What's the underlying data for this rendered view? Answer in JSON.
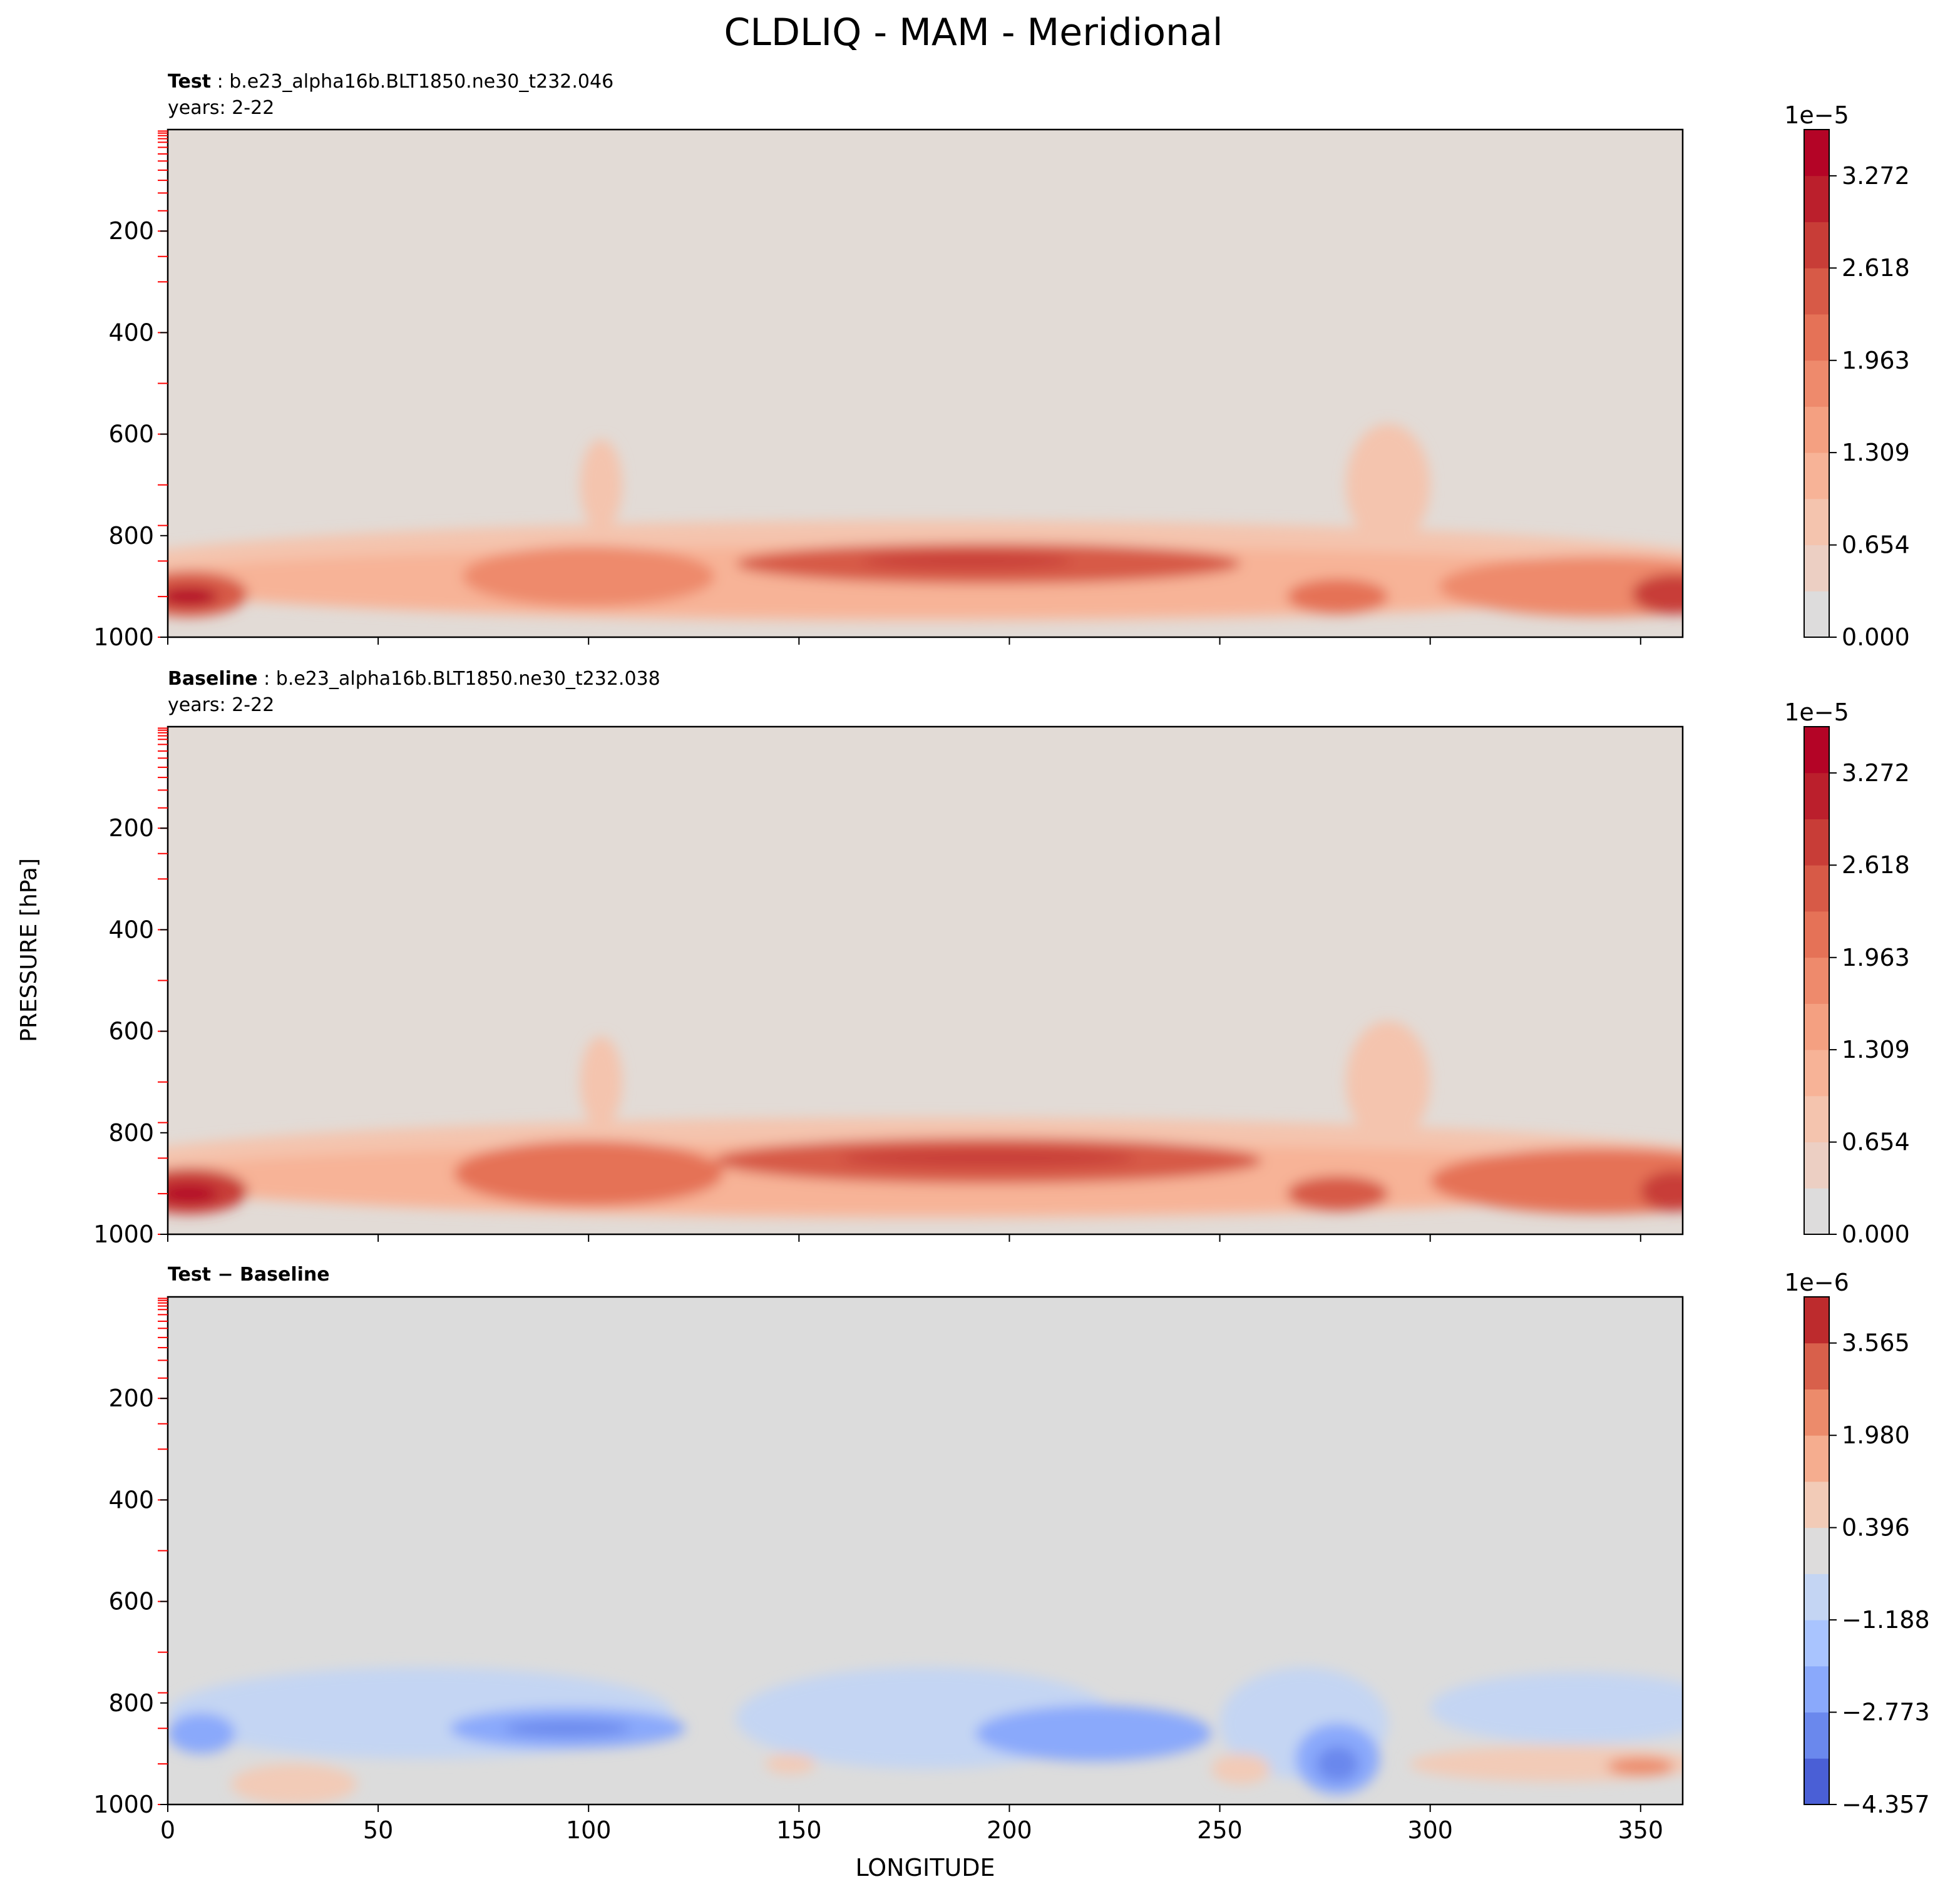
{
  "figure": {
    "title": "CLDLIQ - MAM - Meridional",
    "ylabel": "PRESSURE [hPa]",
    "xlabel": "LONGITUDE"
  },
  "chart_data": [
    {
      "type": "heatmap",
      "panel": "test",
      "title_bold": "Test",
      "title_rest": ": b.e23_alpha16b.BLT1850.ne30_t232.046",
      "subtitle": "years: 2-22",
      "xlim": [
        0,
        360
      ],
      "ylim": [
        1000,
        0
      ],
      "yticks": [
        200,
        400,
        600,
        800,
        1000
      ],
      "xticks": [
        0,
        50,
        100,
        150,
        200,
        250,
        300,
        350
      ],
      "show_xtick_labels": false,
      "colorbar": {
        "multiplier": "1e−5",
        "levels_count": 11,
        "vmin": 0,
        "vmax": 3.6,
        "tick_values": [
          0,
          0.654,
          1.309,
          1.963,
          2.618,
          3.272
        ],
        "tick_labels": [
          "0.000",
          "0.654",
          "1.309",
          "1.963",
          "2.618",
          "3.272"
        ],
        "colors": [
          "#dddcdc",
          "#eccfc3",
          "#f4c4ae",
          "#f7b397",
          "#f4a081",
          "#ee8a6c",
          "#e57257",
          "#d75a47",
          "#c83d37",
          "#bb1f2c",
          "#b40426"
        ]
      },
      "background_color": "#e2dbd6",
      "blobs": [
        {
          "lon": 180,
          "p": 870,
          "dlon": 200,
          "dp": 100,
          "level": 0.8
        },
        {
          "lon": 180,
          "p": 890,
          "dlon": 190,
          "dp": 70,
          "level": 1.3
        },
        {
          "lon": 195,
          "p": 855,
          "dlon": 60,
          "dp": 40,
          "level": 2.3
        },
        {
          "lon": 190,
          "p": 850,
          "dlon": 25,
          "dp": 15,
          "level": 2.8
        },
        {
          "lon": 100,
          "p": 880,
          "dlon": 30,
          "dp": 60,
          "level": 1.9
        },
        {
          "lon": 5,
          "p": 915,
          "dlon": 14,
          "dp": 45,
          "level": 2.6
        },
        {
          "lon": 5,
          "p": 920,
          "dlon": 7,
          "dp": 18,
          "level": 3.3
        },
        {
          "lon": 340,
          "p": 900,
          "dlon": 38,
          "dp": 60,
          "level": 1.9
        },
        {
          "lon": 358,
          "p": 915,
          "dlon": 10,
          "dp": 40,
          "level": 2.8
        },
        {
          "lon": 278,
          "p": 920,
          "dlon": 12,
          "dp": 35,
          "level": 2.2
        },
        {
          "lon": 290,
          "p": 700,
          "dlon": 10,
          "dp": 120,
          "level": 0.7
        },
        {
          "lon": 103,
          "p": 700,
          "dlon": 5,
          "dp": 90,
          "level": 0.7
        }
      ]
    },
    {
      "type": "heatmap",
      "panel": "baseline",
      "title_bold": "Baseline",
      "title_rest": ": b.e23_alpha16b.BLT1850.ne30_t232.038",
      "subtitle": "years: 2-22",
      "xlim": [
        0,
        360
      ],
      "ylim": [
        1000,
        0
      ],
      "yticks": [
        200,
        400,
        600,
        800,
        1000
      ],
      "xticks": [
        0,
        50,
        100,
        150,
        200,
        250,
        300,
        350
      ],
      "show_xtick_labels": false,
      "colorbar": {
        "multiplier": "1e−5",
        "levels_count": 11,
        "vmin": 0,
        "vmax": 3.6,
        "tick_values": [
          0,
          0.654,
          1.309,
          1.963,
          2.618,
          3.272
        ],
        "tick_labels": [
          "0.000",
          "0.654",
          "1.309",
          "1.963",
          "2.618",
          "3.272"
        ],
        "colors": [
          "#dddcdc",
          "#eccfc3",
          "#f4c4ae",
          "#f7b397",
          "#f4a081",
          "#ee8a6c",
          "#e57257",
          "#d75a47",
          "#c83d37",
          "#bb1f2c",
          "#b40426"
        ]
      },
      "background_color": "#e2dbd6",
      "blobs": [
        {
          "lon": 180,
          "p": 870,
          "dlon": 200,
          "dp": 100,
          "level": 0.8
        },
        {
          "lon": 180,
          "p": 890,
          "dlon": 190,
          "dp": 70,
          "level": 1.3
        },
        {
          "lon": 195,
          "p": 855,
          "dlon": 65,
          "dp": 45,
          "level": 2.4
        },
        {
          "lon": 195,
          "p": 850,
          "dlon": 35,
          "dp": 18,
          "level": 2.9
        },
        {
          "lon": 100,
          "p": 880,
          "dlon": 32,
          "dp": 65,
          "level": 2.1
        },
        {
          "lon": 5,
          "p": 915,
          "dlon": 14,
          "dp": 45,
          "level": 2.7
        },
        {
          "lon": 5,
          "p": 920,
          "dlon": 7,
          "dp": 18,
          "level": 3.4
        },
        {
          "lon": 340,
          "p": 895,
          "dlon": 40,
          "dp": 65,
          "level": 2.0
        },
        {
          "lon": 358,
          "p": 915,
          "dlon": 8,
          "dp": 40,
          "level": 2.9
        },
        {
          "lon": 278,
          "p": 920,
          "dlon": 12,
          "dp": 35,
          "level": 2.3
        },
        {
          "lon": 290,
          "p": 700,
          "dlon": 10,
          "dp": 120,
          "level": 0.7
        },
        {
          "lon": 103,
          "p": 700,
          "dlon": 5,
          "dp": 90,
          "level": 0.7
        }
      ]
    },
    {
      "type": "heatmap",
      "panel": "difference",
      "title_bold": "Test − Baseline",
      "title_rest": "",
      "subtitle": "",
      "xlim": [
        0,
        360
      ],
      "ylim": [
        1000,
        0
      ],
      "yticks": [
        200,
        400,
        600,
        800,
        1000
      ],
      "xticks": [
        0,
        50,
        100,
        150,
        200,
        250,
        300,
        350
      ],
      "xtick_labels": [
        "0",
        "50",
        "100",
        "150",
        "200",
        "250",
        "300",
        "350"
      ],
      "show_xtick_labels": true,
      "colorbar": {
        "multiplier": "1e−6",
        "levels_count": 11,
        "vmin": -4.357,
        "vmax": 4.357,
        "tick_values": [
          -4.357,
          -2.773,
          -1.188,
          0.396,
          1.98,
          3.565
        ],
        "tick_labels": [
          "−4.357",
          "−2.773",
          "−1.188",
          "0.396",
          "1.980",
          "3.565"
        ],
        "colors": [
          "#4a5fd6",
          "#6a88ed",
          "#8aa9fb",
          "#a9c4fe",
          "#c4d5f3",
          "#dddcdc",
          "#f2cbb7",
          "#f5ad8f",
          "#ec8b6b",
          "#d8604b",
          "#bd2b2d"
        ]
      },
      "background_color": "#dcdcdc",
      "blobs": [
        {
          "lon": 60,
          "p": 820,
          "dlon": 60,
          "dp": 90,
          "level": -0.8
        },
        {
          "lon": 180,
          "p": 830,
          "dlon": 45,
          "dp": 100,
          "level": -0.8
        },
        {
          "lon": 270,
          "p": 840,
          "dlon": 20,
          "dp": 110,
          "level": -0.8
        },
        {
          "lon": 335,
          "p": 810,
          "dlon": 35,
          "dp": 70,
          "level": -0.8
        },
        {
          "lon": 95,
          "p": 850,
          "dlon": 28,
          "dp": 40,
          "level": -2.0
        },
        {
          "lon": 95,
          "p": 850,
          "dlon": 15,
          "dp": 15,
          "level": -3.0
        },
        {
          "lon": 220,
          "p": 860,
          "dlon": 28,
          "dp": 55,
          "level": -2.0
        },
        {
          "lon": 278,
          "p": 910,
          "dlon": 10,
          "dp": 70,
          "level": -2.0
        },
        {
          "lon": 278,
          "p": 920,
          "dlon": 5,
          "dp": 35,
          "level": -3.5
        },
        {
          "lon": 8,
          "p": 860,
          "dlon": 8,
          "dp": 40,
          "level": -2.0
        },
        {
          "lon": 330,
          "p": 920,
          "dlon": 35,
          "dp": 35,
          "level": 0.9
        },
        {
          "lon": 350,
          "p": 925,
          "dlon": 8,
          "dp": 18,
          "level": 2.2
        },
        {
          "lon": 30,
          "p": 960,
          "dlon": 15,
          "dp": 40,
          "level": 0.9
        },
        {
          "lon": 255,
          "p": 930,
          "dlon": 7,
          "dp": 30,
          "level": 0.9
        },
        {
          "lon": 148,
          "p": 920,
          "dlon": 6,
          "dp": 20,
          "level": 0.9
        }
      ]
    }
  ]
}
